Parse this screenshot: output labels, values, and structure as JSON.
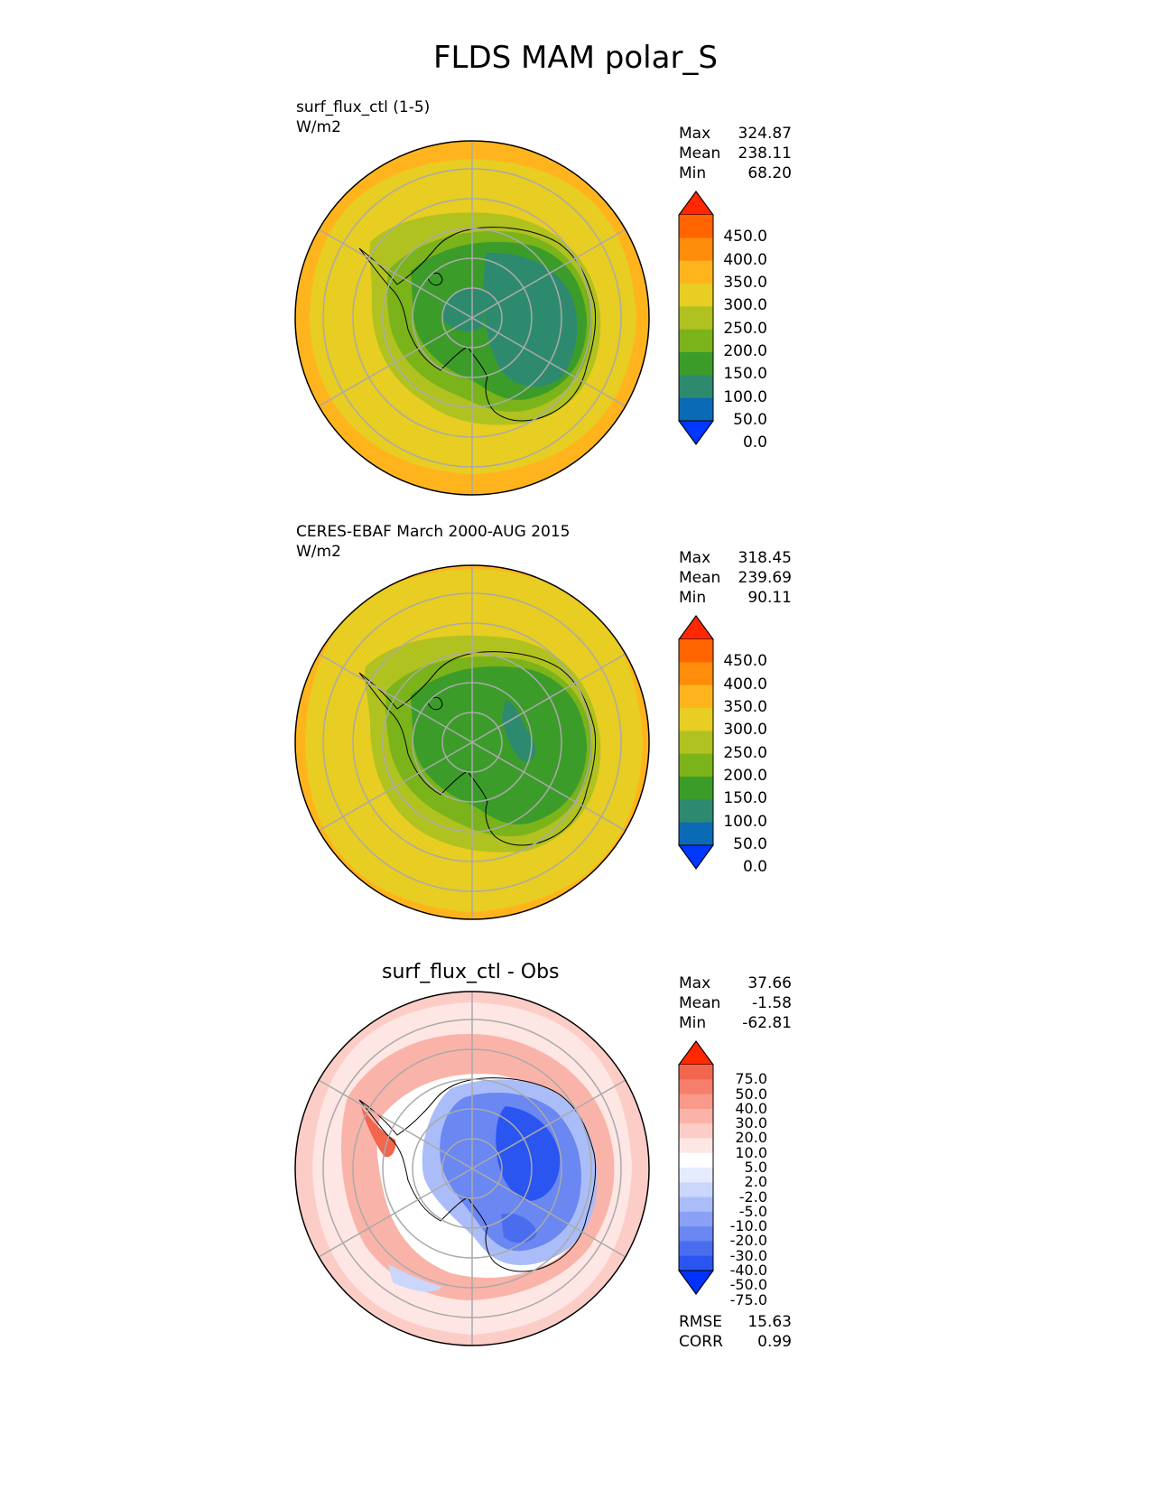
{
  "title": "FLDS MAM polar_S",
  "panels": [
    {
      "id": "test",
      "label_line1": "surf_flux_ctl (1-5)",
      "label_line2": "W/m2",
      "stats": [
        {
          "label": "Max",
          "value": "324.87"
        },
        {
          "label": "Mean",
          "value": "238.11"
        },
        {
          "label": "Min",
          "value": "68.20"
        }
      ],
      "colorbar_ticks": [
        "450.0",
        "400.0",
        "350.0",
        "300.0",
        "250.0",
        "200.0",
        "150.0",
        "100.0",
        "50.0",
        "0.0"
      ]
    },
    {
      "id": "ref",
      "label_line1": "CERES-EBAF March 2000-AUG 2015",
      "label_line2": "W/m2",
      "stats": [
        {
          "label": "Max",
          "value": "318.45"
        },
        {
          "label": "Mean",
          "value": "239.69"
        },
        {
          "label": "Min",
          "value": "90.11"
        }
      ],
      "colorbar_ticks": [
        "450.0",
        "400.0",
        "350.0",
        "300.0",
        "250.0",
        "200.0",
        "150.0",
        "100.0",
        "50.0",
        "0.0"
      ]
    },
    {
      "id": "diff",
      "title": "surf_flux_ctl - Obs",
      "stats": [
        {
          "label": "Max",
          "value": "37.66"
        },
        {
          "label": "Mean",
          "value": "-1.58"
        },
        {
          "label": "Min",
          "value": "-62.81"
        }
      ],
      "colorbar_ticks": [
        "75.0",
        "50.0",
        "40.0",
        "30.0",
        "20.0",
        "10.0",
        "5.0",
        "2.0",
        "-2.0",
        "-5.0",
        "-10.0",
        "-20.0",
        "-30.0",
        "-40.0",
        "-50.0",
        "-75.0"
      ],
      "metrics": [
        {
          "label": "RMSE",
          "value": "15.63"
        },
        {
          "label": "CORR",
          "value": "0.99"
        }
      ]
    }
  ],
  "colors": {
    "abs_levels": [
      "#0038ff",
      "#0a6ab5",
      "#2e8a6e",
      "#3c9c2a",
      "#7bb31a",
      "#b0c220",
      "#e8cd22",
      "#ffb41e",
      "#ff8c0a",
      "#ff6400",
      "#ff2800"
    ],
    "diff_levels": [
      "#0032ff",
      "#2a55f0",
      "#4a6df0",
      "#6a87f2",
      "#8aa0f5",
      "#aabdf8",
      "#cad6fb",
      "#e6ebfd",
      "#ffffff",
      "#fde6e3",
      "#fccdc6",
      "#fab3a8",
      "#f8998a",
      "#f57f6c",
      "#f2654e",
      "#ff2800"
    ],
    "grid": "#aaaaaa",
    "coast": "#000000"
  }
}
